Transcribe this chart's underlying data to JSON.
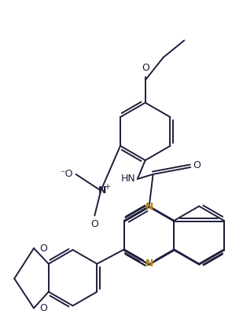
{
  "background_color": "#ffffff",
  "line_color": "#1e1e3c",
  "line_color_N": "#b8860b",
  "line_width": 1.4,
  "figsize": [
    3.09,
    4.24
  ],
  "dpi": 100,
  "xlim": [
    0,
    309
  ],
  "ylim": [
    0,
    424
  ]
}
